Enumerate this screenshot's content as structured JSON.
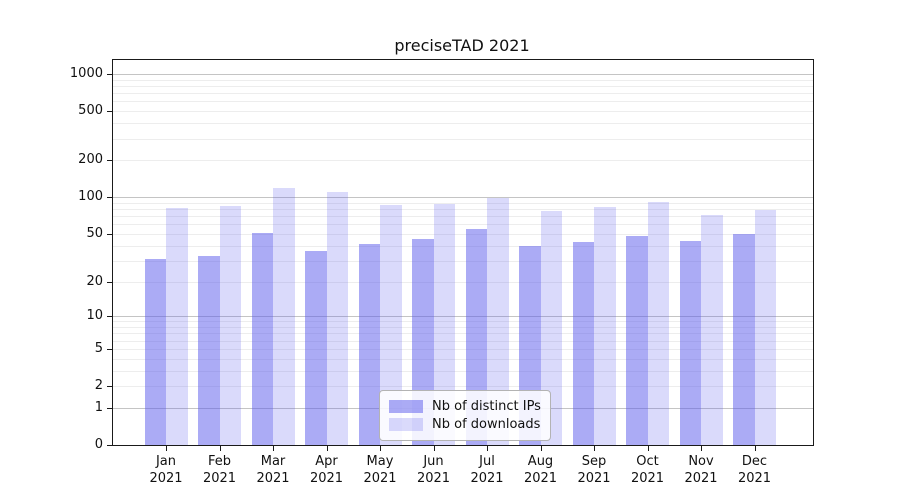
{
  "title": "preciseTAD 2021",
  "chart_data": {
    "type": "bar",
    "title": "preciseTAD 2021",
    "categories": [
      "Jan",
      "Feb",
      "Mar",
      "Apr",
      "May",
      "Jun",
      "Jul",
      "Aug",
      "Sep",
      "Oct",
      "Nov",
      "Dec"
    ],
    "category_year": "2021",
    "series": [
      {
        "name": "Nb of distinct IPs",
        "color": "rgba(88,88,236,0.50)",
        "values": [
          31,
          33,
          51,
          36,
          41,
          45,
          55,
          40,
          43,
          48,
          44,
          50
        ]
      },
      {
        "name": "Nb of downloads",
        "color": "rgba(88,88,236,0.22)",
        "values": [
          81,
          84,
          118,
          110,
          87,
          88,
          99,
          77,
          83,
          91,
          72,
          78
        ]
      }
    ],
    "xlabel": "",
    "ylabel": "",
    "yscale": "log1p",
    "y_ticks": [
      0,
      1,
      2,
      5,
      10,
      20,
      50,
      100,
      200,
      500,
      1000
    ],
    "ylim": [
      0,
      1000
    ],
    "grid": true,
    "legend_position": "lower-center",
    "grid_minor_color": "#ededed",
    "grid_major_color": "#c4c4c4"
  }
}
